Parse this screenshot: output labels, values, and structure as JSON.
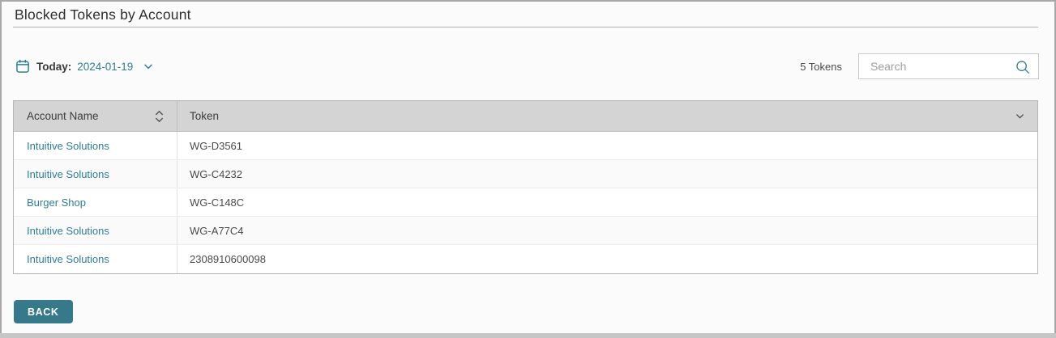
{
  "header": {
    "title": "Blocked Tokens by Account"
  },
  "toolbar": {
    "date_label": "Today:",
    "date_value": "2024-01-19",
    "token_count": "5 Tokens",
    "search_placeholder": "Search",
    "search_value": ""
  },
  "table": {
    "columns": [
      {
        "label": "Account Name"
      },
      {
        "label": "Token"
      }
    ],
    "rows": [
      {
        "account": "Intuitive Solutions",
        "token": "WG-D3561"
      },
      {
        "account": "Intuitive Solutions",
        "token": "WG-C4232"
      },
      {
        "account": "Burger Shop",
        "token": "WG-C148C"
      },
      {
        "account": "Intuitive Solutions",
        "token": "WG-A77C4"
      },
      {
        "account": "Intuitive Solutions",
        "token": "2308910600098"
      }
    ]
  },
  "footer": {
    "back_label": "BACK"
  },
  "colors": {
    "accent_teal": "#2d7f90",
    "link": "#2e7d98",
    "header_bg": "#d4d4d4",
    "button_bg": "#36798a"
  }
}
